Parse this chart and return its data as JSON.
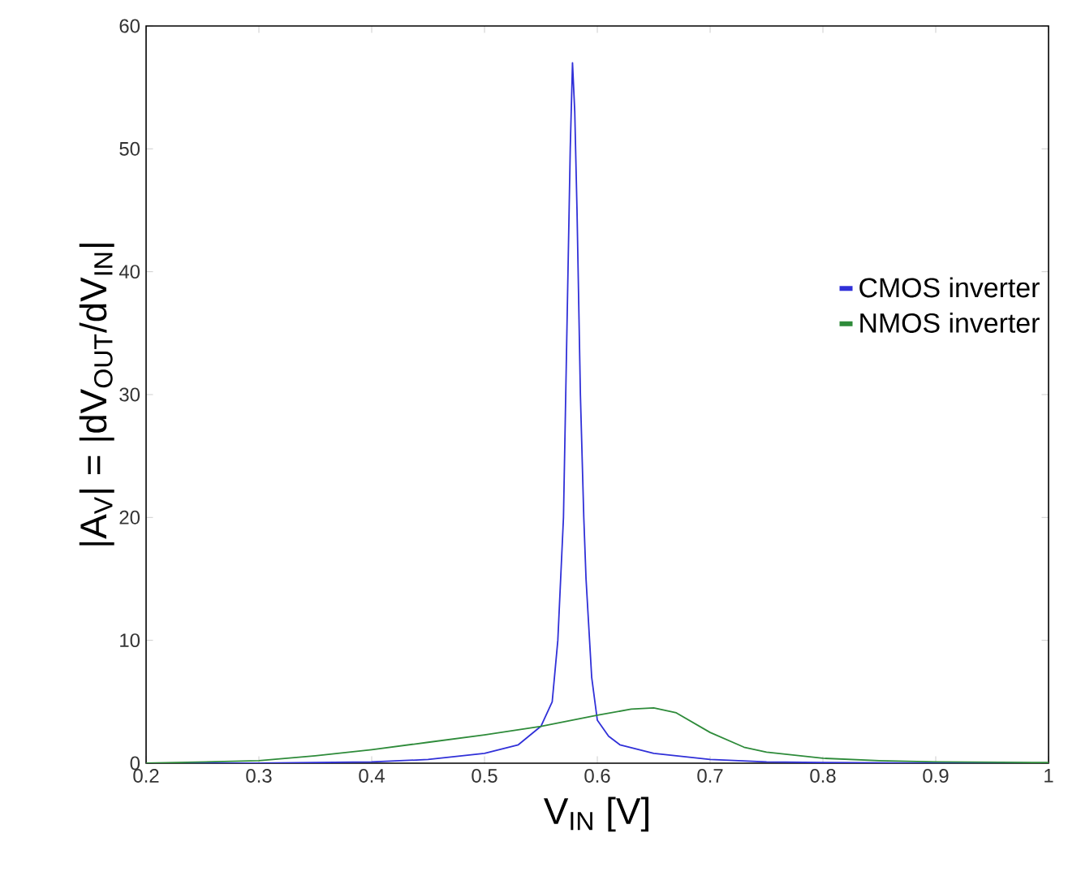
{
  "chart_data": {
    "type": "line",
    "xlabel": "V$_{IN}$ [V]",
    "ylabel": "|A$_{V}$| = |dV$_{OUT}$/dV$_{IN}$|",
    "xlim": [
      0.2,
      1
    ],
    "ylim": [
      0,
      60
    ],
    "xticks": [
      0.2,
      0.3,
      0.4,
      0.5,
      0.6,
      0.7,
      0.8,
      0.9,
      1
    ],
    "yticks": [
      0,
      10,
      20,
      30,
      40,
      50,
      60
    ],
    "legend": "right",
    "grid": false,
    "marker": "none",
    "line_style": "solid",
    "series": [
      {
        "name": "CMOS inverter",
        "color": "#3030d8",
        "x": [
          0.2,
          0.3,
          0.4,
          0.45,
          0.5,
          0.53,
          0.55,
          0.56,
          0.565,
          0.57,
          0.573,
          0.576,
          0.578,
          0.58,
          0.582,
          0.585,
          0.588,
          0.59,
          0.595,
          0.6,
          0.61,
          0.62,
          0.65,
          0.7,
          0.75,
          0.8,
          0.9,
          1.0
        ],
        "values": [
          0,
          0,
          0.1,
          0.3,
          0.8,
          1.5,
          3,
          5,
          10,
          20,
          35,
          50,
          57,
          53,
          45,
          30,
          20,
          15,
          7,
          3.5,
          2.2,
          1.5,
          0.8,
          0.3,
          0.1,
          0.05,
          0,
          0
        ]
      },
      {
        "name": "NMOS inverter",
        "color": "#2e8b3a",
        "x": [
          0.2,
          0.3,
          0.35,
          0.4,
          0.45,
          0.5,
          0.55,
          0.6,
          0.63,
          0.65,
          0.67,
          0.7,
          0.73,
          0.75,
          0.8,
          0.85,
          0.9,
          1.0
        ],
        "values": [
          0,
          0.2,
          0.6,
          1.1,
          1.7,
          2.3,
          3.0,
          3.9,
          4.4,
          4.5,
          4.1,
          2.5,
          1.3,
          0.9,
          0.4,
          0.2,
          0.1,
          0.05
        ]
      }
    ]
  }
}
